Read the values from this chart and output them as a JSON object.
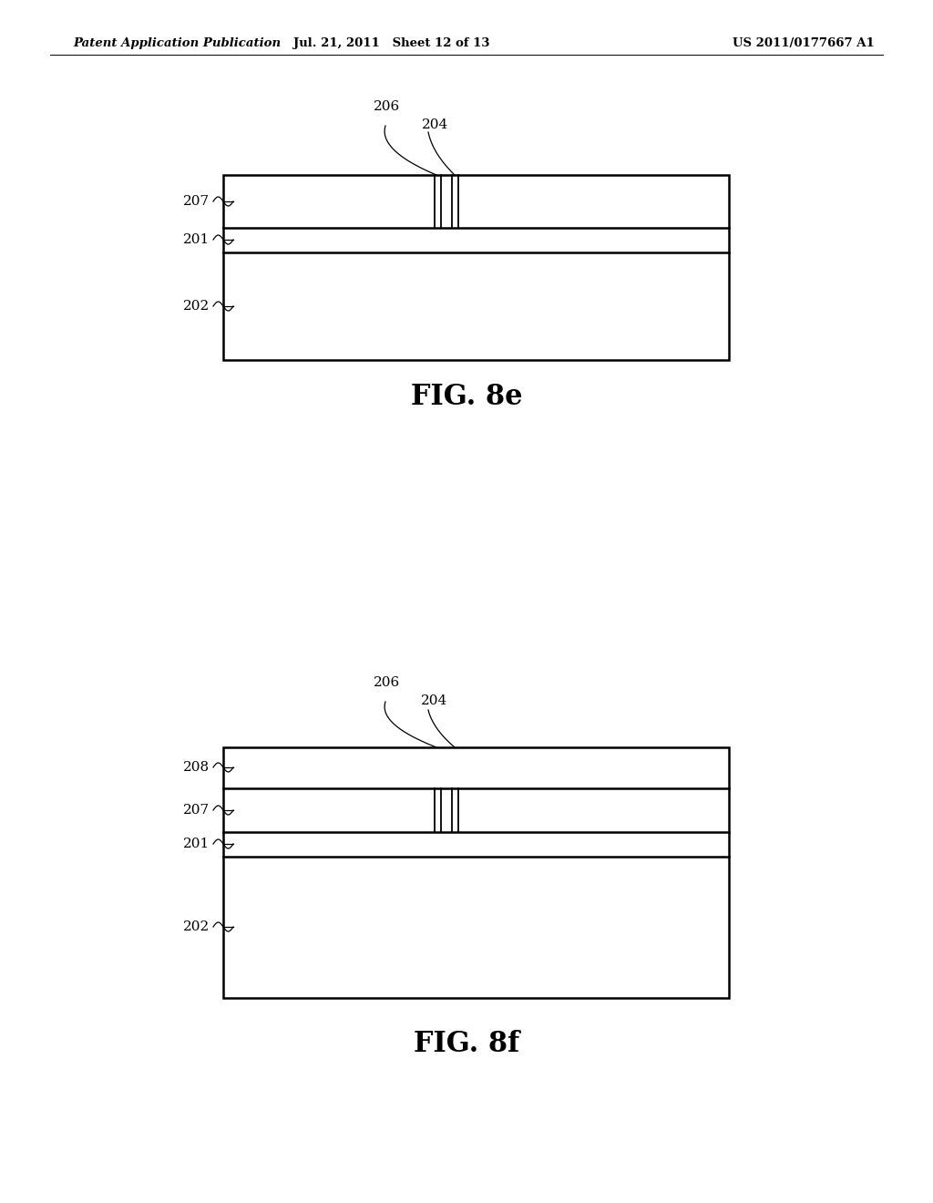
{
  "header_left": "Patent Application Publication",
  "header_mid": "Jul. 21, 2011   Sheet 12 of 13",
  "header_right": "US 2011/0177667 A1",
  "header_fontsize": 9.5,
  "bg_color": "#ffffff",
  "fig_label_e": "FIG. 8e",
  "fig_label_f": "FIG. 8f",
  "fig_label_fontsize": 22
}
